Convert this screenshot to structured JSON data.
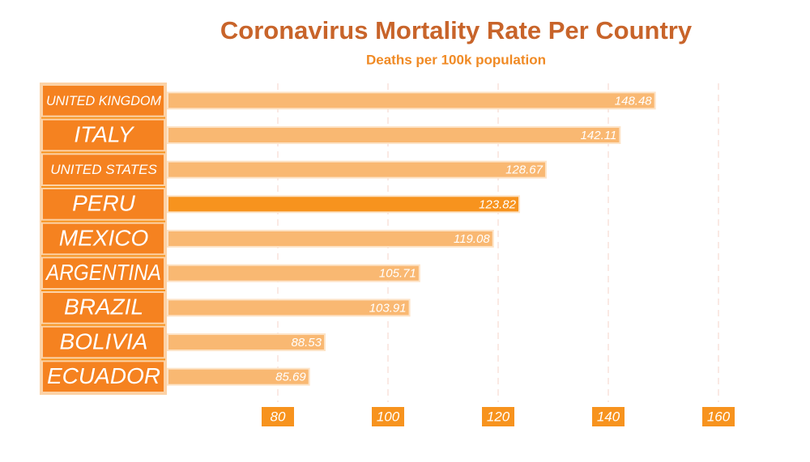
{
  "chart_data": {
    "type": "bar",
    "orientation": "horizontal",
    "title": "Coronavirus Mortality Rate Per Country",
    "subtitle": "Deaths per 100k population",
    "categories": [
      "UNITED KINGDOM",
      "ITALY",
      "UNITED STATES",
      "PERU",
      "MEXICO",
      "ARGENTINA",
      "BRAZIL",
      "BOLIVIA",
      "ECUADOR"
    ],
    "values": [
      148.48,
      142.11,
      128.67,
      123.82,
      119.08,
      105.71,
      103.91,
      88.53,
      85.69
    ],
    "colors": [
      "#f9b872",
      "#f9b872",
      "#f9b872",
      "#f7931e",
      "#f9b872",
      "#f9b872",
      "#f9b872",
      "#f9b872",
      "#f9b872"
    ],
    "xlim": [
      60,
      170
    ],
    "xticks": [
      80,
      100,
      120,
      140,
      160
    ],
    "grid": true
  }
}
